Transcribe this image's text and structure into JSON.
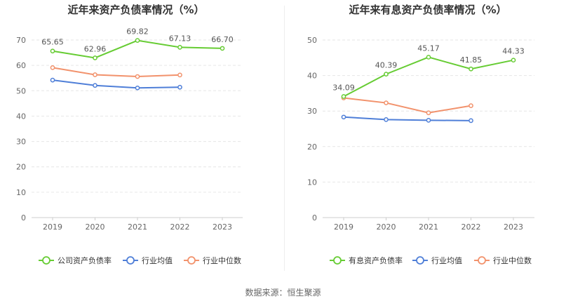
{
  "colors": {
    "company": "#66cc33",
    "industry_avg": "#4f7fd8",
    "industry_median": "#f2926c",
    "grid": "#e6e6e6",
    "axis_text": "#666666",
    "title": "#333333"
  },
  "source": "数据来源：恒生聚源",
  "chart_data": [
    {
      "type": "line",
      "title": "近年来资产负债率情况（%）",
      "x": [
        "2019",
        "2020",
        "2021",
        "2022",
        "2023"
      ],
      "ylim": [
        0,
        70
      ],
      "yticks": [
        "0",
        "10",
        "20",
        "30",
        "40",
        "50",
        "60",
        "70"
      ],
      "grid": true,
      "legend_position": "bottom",
      "series": [
        {
          "name": "公司资产负债率",
          "color": "#66cc33",
          "labeled": true,
          "values": [
            65.65,
            62.96,
            69.82,
            67.13,
            66.7
          ],
          "labels": [
            "65.65",
            "62.96",
            "69.82",
            "67.13",
            "66.70"
          ]
        },
        {
          "name": "行业均值",
          "color": "#4f7fd8",
          "labeled": false,
          "values": [
            54.2,
            52.1,
            51.1,
            51.4,
            null
          ]
        },
        {
          "name": "行业中位数",
          "color": "#f2926c",
          "labeled": false,
          "values": [
            59.1,
            56.3,
            55.6,
            56.2,
            null
          ]
        }
      ]
    },
    {
      "type": "line",
      "title": "近年来有息资产负债率情况（%）",
      "x": [
        "2019",
        "2020",
        "2021",
        "2022",
        "2023"
      ],
      "ylim": [
        0,
        50
      ],
      "yticks": [
        "0",
        "10",
        "20",
        "30",
        "40",
        "50"
      ],
      "grid": true,
      "legend_position": "bottom",
      "series": [
        {
          "name": "有息资产负债率",
          "color": "#66cc33",
          "labeled": true,
          "values": [
            34.09,
            40.39,
            45.17,
            41.85,
            44.33
          ],
          "labels": [
            "34.09",
            "40.39",
            "45.17",
            "41.85",
            "44.33"
          ]
        },
        {
          "name": "行业均值",
          "color": "#4f7fd8",
          "labeled": false,
          "values": [
            28.3,
            27.6,
            27.4,
            27.3,
            null
          ]
        },
        {
          "name": "行业中位数",
          "color": "#f2926c",
          "labeled": false,
          "values": [
            33.7,
            32.3,
            29.5,
            31.5,
            null
          ]
        }
      ]
    }
  ]
}
